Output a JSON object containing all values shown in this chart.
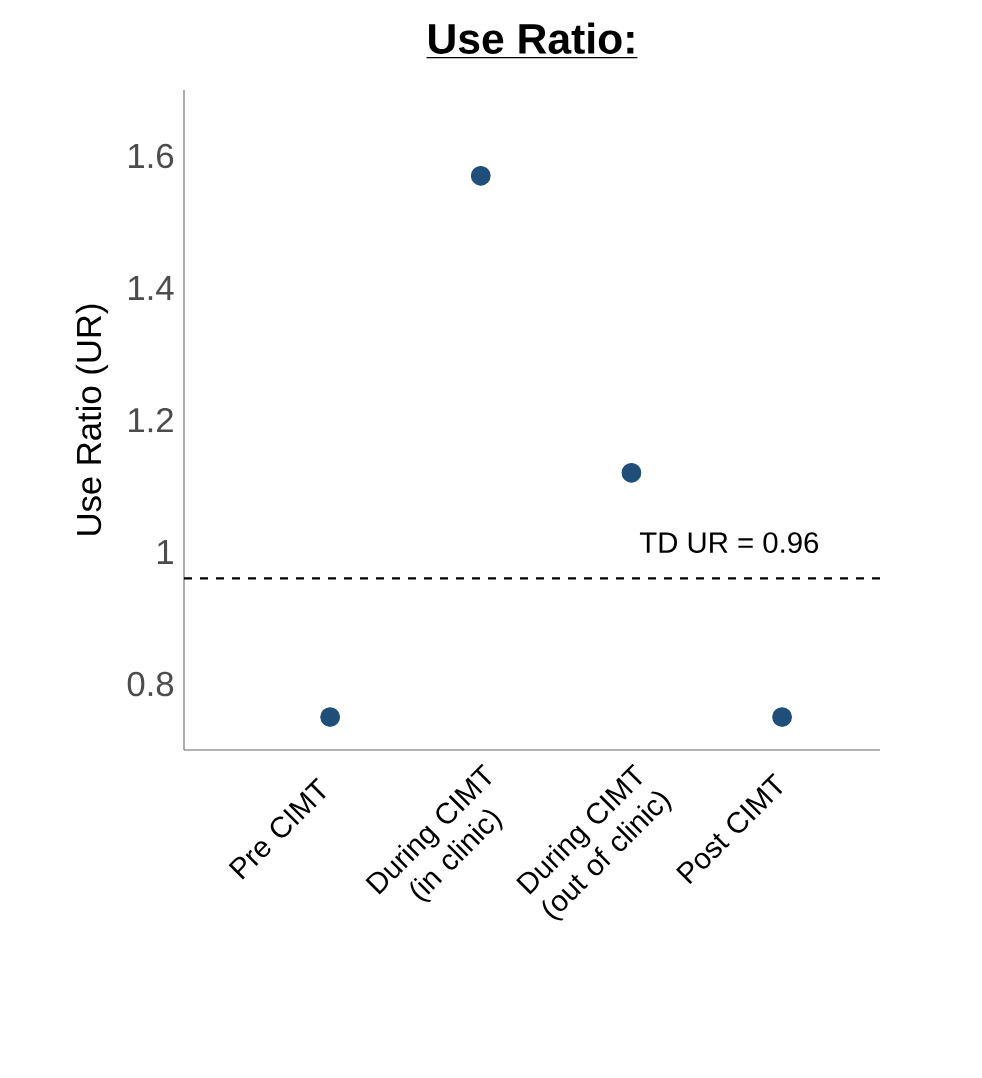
{
  "chart_data": {
    "type": "scatter",
    "title": "Use Ratio:",
    "ylabel": "Use Ratio (UR)",
    "categories": [
      "Pre CIMT",
      "During CIMT (in clinic)",
      "During CIMT (out of clinic)",
      "Post CIMT"
    ],
    "values": [
      0.75,
      1.57,
      1.12,
      0.75
    ],
    "color": "#1f4e79",
    "marker": "circle",
    "ylim": [
      0.7,
      1.7
    ],
    "yticks": [
      {
        "value": 0.8,
        "label": "0.8"
      },
      1,
      1.2,
      1.4,
      1.6
    ],
    "ref_lines": [
      {
        "axis": "y",
        "value": 0.96,
        "label": "TD UR = 0.96",
        "color": "#000000",
        "line_style": "dashed"
      }
    ],
    "grid": false
  }
}
